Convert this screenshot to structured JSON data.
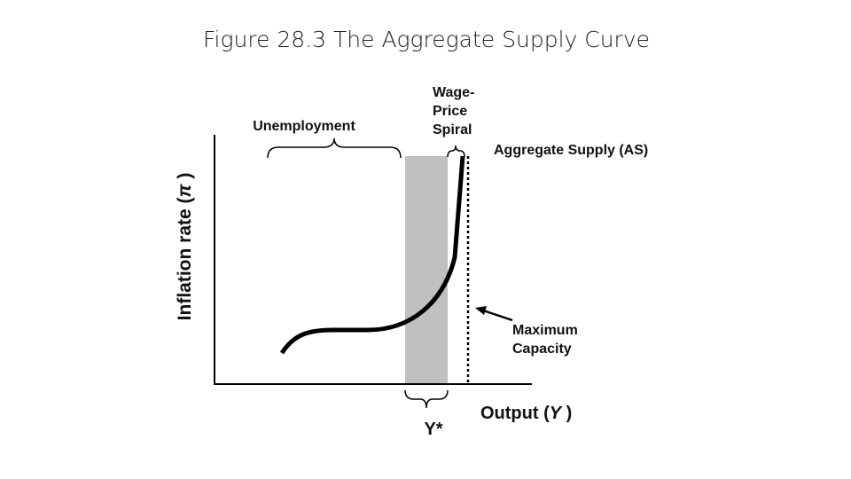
{
  "header": {
    "title": "Figure 28.3 The Aggregate Supply Curve"
  },
  "diagram": {
    "unemployment_label": "Unemployment",
    "spiral_label": [
      "Wage-",
      "Price",
      "Spiral"
    ],
    "curve_label": "Aggregate Supply (AS)",
    "capacity_label": [
      "Maximum",
      "Capacity"
    ],
    "y_axis_label": [
      "Inflation rate (",
      "π",
      " )"
    ],
    "x_axis_label": [
      "Output (",
      "Y",
      " )"
    ],
    "potential_label": "Y*"
  }
}
